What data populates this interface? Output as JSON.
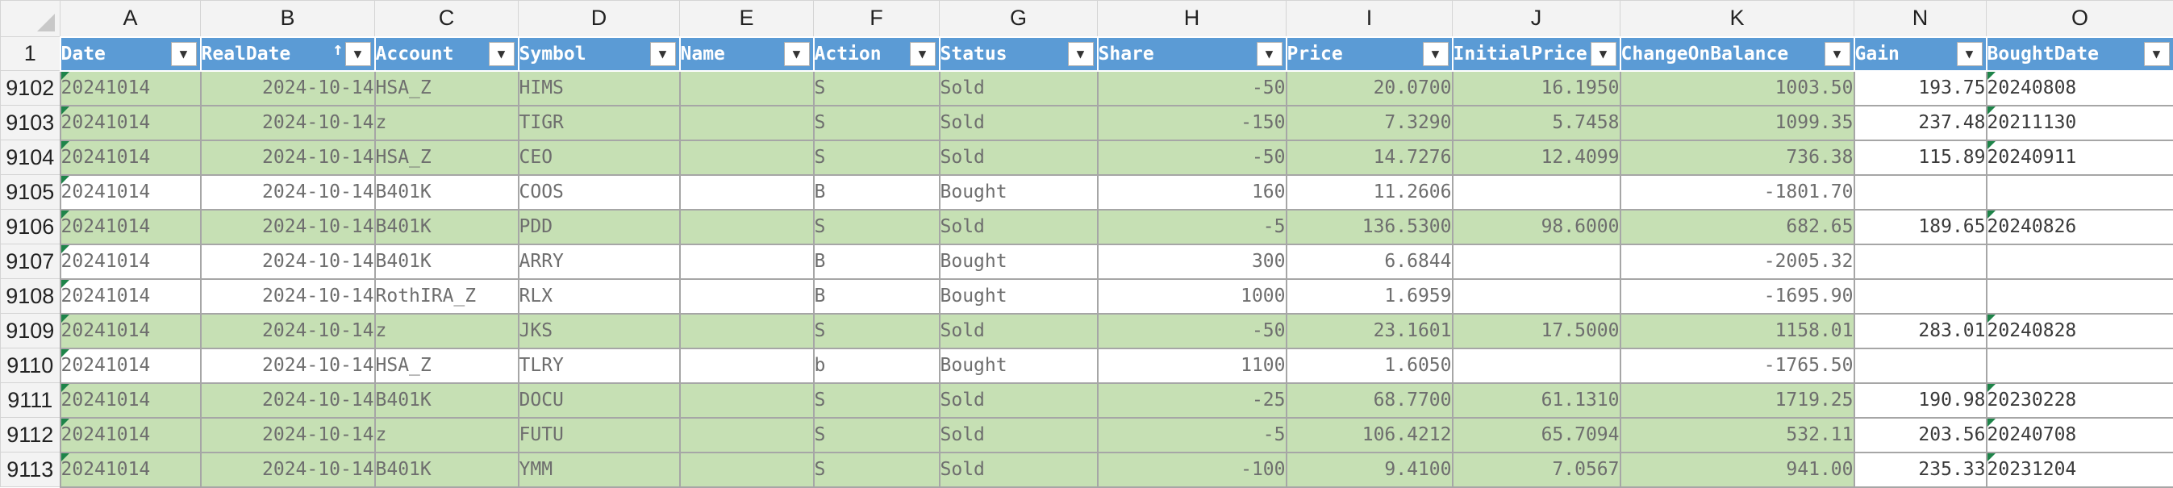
{
  "columns": [
    "A",
    "B",
    "C",
    "D",
    "E",
    "F",
    "G",
    "H",
    "I",
    "J",
    "K",
    "N",
    "O"
  ],
  "header_row_number": "1",
  "headers": [
    "Date",
    "RealDate",
    "Account",
    "Symbol",
    "Name",
    "Action",
    "Status",
    "Share",
    "Price",
    "InitialPrice",
    "ChangeOnBalance",
    "Gain",
    "BoughtDate"
  ],
  "rows": [
    {
      "n": "9102",
      "hl": true,
      "cells": [
        "20241014",
        "2024-10-14",
        "HSA_Z",
        "HIMS",
        "",
        "S",
        "Sold",
        "-50",
        "20.0700",
        "16.1950",
        "1003.50",
        "193.75",
        "20240808"
      ]
    },
    {
      "n": "9103",
      "hl": true,
      "cells": [
        "20241014",
        "2024-10-14",
        "z",
        "TIGR",
        "",
        "S",
        "Sold",
        "-150",
        "7.3290",
        "5.7458",
        "1099.35",
        "237.48",
        "20211130"
      ]
    },
    {
      "n": "9104",
      "hl": true,
      "cells": [
        "20241014",
        "2024-10-14",
        "HSA_Z",
        "CEO",
        "",
        "S",
        "Sold",
        "-50",
        "14.7276",
        "12.4099",
        "736.38",
        "115.89",
        "20240911"
      ]
    },
    {
      "n": "9105",
      "hl": false,
      "cells": [
        "20241014",
        "2024-10-14",
        "B401K",
        "COOS",
        "",
        "B",
        "Bought",
        "160",
        "11.2606",
        "",
        "-1801.70",
        "",
        ""
      ]
    },
    {
      "n": "9106",
      "hl": true,
      "cells": [
        "20241014",
        "2024-10-14",
        "B401K",
        "PDD",
        "",
        "S",
        "Sold",
        "-5",
        "136.5300",
        "98.6000",
        "682.65",
        "189.65",
        "20240826"
      ]
    },
    {
      "n": "9107",
      "hl": false,
      "cells": [
        "20241014",
        "2024-10-14",
        "B401K",
        "ARRY",
        "",
        "B",
        "Bought",
        "300",
        "6.6844",
        "",
        "-2005.32",
        "",
        ""
      ]
    },
    {
      "n": "9108",
      "hl": false,
      "cells": [
        "20241014",
        "2024-10-14",
        "RothIRA_Z",
        "RLX",
        "",
        "B",
        "Bought",
        "1000",
        "1.6959",
        "",
        "-1695.90",
        "",
        ""
      ]
    },
    {
      "n": "9109",
      "hl": true,
      "cells": [
        "20241014",
        "2024-10-14",
        "z",
        "JKS",
        "",
        "S",
        "Sold",
        "-50",
        "23.1601",
        "17.5000",
        "1158.01",
        "283.01",
        "20240828"
      ]
    },
    {
      "n": "9110",
      "hl": false,
      "cells": [
        "20241014",
        "2024-10-14",
        "HSA_Z",
        "TLRY",
        "",
        "b",
        "Bought",
        "1100",
        "1.6050",
        "",
        "-1765.50",
        "",
        ""
      ]
    },
    {
      "n": "9111",
      "hl": true,
      "cells": [
        "20241014",
        "2024-10-14",
        "B401K",
        "DOCU",
        "",
        "S",
        "Sold",
        "-25",
        "68.7700",
        "61.1310",
        "1719.25",
        "190.98",
        "20230228"
      ]
    },
    {
      "n": "9112",
      "hl": true,
      "cells": [
        "20241014",
        "2024-10-14",
        "z",
        "FUTU",
        "",
        "S",
        "Sold",
        "-5",
        "106.4212",
        "65.7094",
        "532.11",
        "203.56",
        "20240708"
      ]
    },
    {
      "n": "9113",
      "hl": true,
      "cells": [
        "20241014",
        "2024-10-14",
        "B401K",
        "YMM",
        "",
        "S",
        "Sold",
        "-100",
        "9.4100",
        "7.0567",
        "941.00",
        "235.33",
        "20231204"
      ]
    }
  ],
  "colors": {
    "highlight_fill": "#c6e0b4",
    "header_fill": "#5b9bd5",
    "indicator": "#1e8449"
  },
  "icons": {
    "filter": "filter-dropdown-icon",
    "sort": "sort-ascending-icon"
  }
}
